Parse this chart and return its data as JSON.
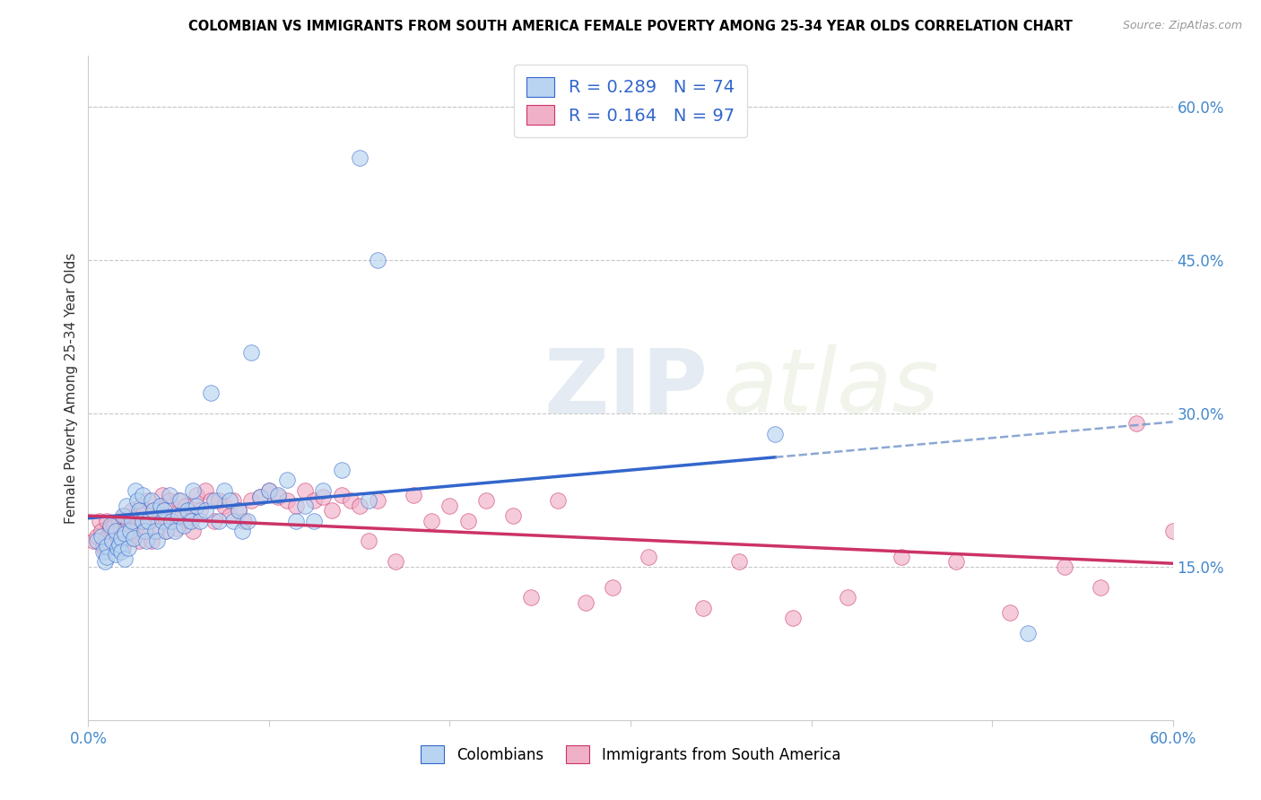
{
  "title": "COLOMBIAN VS IMMIGRANTS FROM SOUTH AMERICA FEMALE POVERTY AMONG 25-34 YEAR OLDS CORRELATION CHART",
  "source": "Source: ZipAtlas.com",
  "ylabel": "Female Poverty Among 25-34 Year Olds",
  "xlim": [
    0,
    0.6
  ],
  "ylim": [
    0,
    0.65
  ],
  "xticks": [
    0.0,
    0.1,
    0.2,
    0.3,
    0.4,
    0.5,
    0.6
  ],
  "xtick_labels": [
    "0.0%",
    "",
    "",
    "",
    "",
    "",
    "60.0%"
  ],
  "ytick_labels_right": [
    "60.0%",
    "45.0%",
    "30.0%",
    "15.0%"
  ],
  "ytick_positions_right": [
    0.6,
    0.45,
    0.3,
    0.15
  ],
  "color_colombian": "#b8d4f0",
  "color_south_america": "#f0b0c8",
  "color_colombian_line": "#3366cc",
  "color_south_america_line": "#cc3366",
  "color_dashed": "#7799cc",
  "r_colombian": 0.289,
  "n_colombian": 74,
  "r_south_america": 0.164,
  "n_south_america": 97,
  "colombian_x": [
    0.005,
    0.007,
    0.008,
    0.009,
    0.01,
    0.01,
    0.012,
    0.013,
    0.015,
    0.015,
    0.016,
    0.017,
    0.018,
    0.018,
    0.019,
    0.02,
    0.02,
    0.021,
    0.022,
    0.023,
    0.024,
    0.025,
    0.026,
    0.027,
    0.028,
    0.03,
    0.03,
    0.031,
    0.032,
    0.033,
    0.035,
    0.036,
    0.037,
    0.038,
    0.04,
    0.041,
    0.042,
    0.043,
    0.045,
    0.046,
    0.048,
    0.05,
    0.051,
    0.053,
    0.055,
    0.057,
    0.058,
    0.06,
    0.062,
    0.065,
    0.068,
    0.07,
    0.072,
    0.075,
    0.078,
    0.08,
    0.083,
    0.085,
    0.088,
    0.09,
    0.095,
    0.1,
    0.105,
    0.11,
    0.115,
    0.12,
    0.125,
    0.13,
    0.14,
    0.15,
    0.155,
    0.16,
    0.38,
    0.52
  ],
  "colombian_y": [
    0.175,
    0.18,
    0.165,
    0.155,
    0.17,
    0.16,
    0.19,
    0.175,
    0.185,
    0.162,
    0.168,
    0.172,
    0.178,
    0.165,
    0.2,
    0.158,
    0.182,
    0.21,
    0.168,
    0.185,
    0.195,
    0.178,
    0.225,
    0.215,
    0.205,
    0.195,
    0.22,
    0.185,
    0.175,
    0.195,
    0.215,
    0.205,
    0.185,
    0.175,
    0.21,
    0.195,
    0.205,
    0.185,
    0.22,
    0.195,
    0.185,
    0.2,
    0.215,
    0.19,
    0.205,
    0.195,
    0.225,
    0.21,
    0.195,
    0.205,
    0.32,
    0.215,
    0.195,
    0.225,
    0.215,
    0.195,
    0.205,
    0.185,
    0.195,
    0.36,
    0.218,
    0.225,
    0.22,
    0.235,
    0.195,
    0.21,
    0.195,
    0.225,
    0.245,
    0.55,
    0.215,
    0.45,
    0.28,
    0.085
  ],
  "south_america_x": [
    0.003,
    0.005,
    0.006,
    0.007,
    0.008,
    0.009,
    0.01,
    0.01,
    0.011,
    0.012,
    0.013,
    0.014,
    0.015,
    0.016,
    0.017,
    0.018,
    0.019,
    0.02,
    0.021,
    0.022,
    0.023,
    0.024,
    0.025,
    0.026,
    0.027,
    0.028,
    0.029,
    0.03,
    0.031,
    0.032,
    0.033,
    0.034,
    0.035,
    0.036,
    0.037,
    0.038,
    0.04,
    0.041,
    0.042,
    0.043,
    0.045,
    0.047,
    0.049,
    0.05,
    0.052,
    0.054,
    0.056,
    0.058,
    0.06,
    0.062,
    0.065,
    0.068,
    0.07,
    0.072,
    0.075,
    0.078,
    0.08,
    0.083,
    0.086,
    0.09,
    0.095,
    0.1,
    0.105,
    0.11,
    0.115,
    0.12,
    0.125,
    0.13,
    0.135,
    0.14,
    0.145,
    0.15,
    0.155,
    0.16,
    0.17,
    0.18,
    0.19,
    0.2,
    0.21,
    0.22,
    0.235,
    0.245,
    0.26,
    0.275,
    0.29,
    0.31,
    0.34,
    0.36,
    0.39,
    0.42,
    0.45,
    0.48,
    0.51,
    0.54,
    0.56,
    0.58,
    0.6
  ],
  "south_america_y": [
    0.175,
    0.18,
    0.195,
    0.185,
    0.17,
    0.165,
    0.195,
    0.178,
    0.168,
    0.188,
    0.175,
    0.19,
    0.182,
    0.178,
    0.195,
    0.185,
    0.168,
    0.2,
    0.188,
    0.192,
    0.178,
    0.205,
    0.198,
    0.185,
    0.19,
    0.175,
    0.21,
    0.195,
    0.205,
    0.185,
    0.215,
    0.195,
    0.175,
    0.205,
    0.198,
    0.185,
    0.21,
    0.22,
    0.2,
    0.185,
    0.215,
    0.198,
    0.188,
    0.215,
    0.2,
    0.21,
    0.195,
    0.185,
    0.22,
    0.205,
    0.225,
    0.215,
    0.195,
    0.215,
    0.21,
    0.2,
    0.215,
    0.205,
    0.195,
    0.215,
    0.218,
    0.225,
    0.218,
    0.215,
    0.21,
    0.225,
    0.215,
    0.218,
    0.205,
    0.22,
    0.215,
    0.21,
    0.175,
    0.215,
    0.155,
    0.22,
    0.195,
    0.21,
    0.195,
    0.215,
    0.2,
    0.12,
    0.215,
    0.115,
    0.13,
    0.16,
    0.11,
    0.155,
    0.1,
    0.12,
    0.16,
    0.155,
    0.105,
    0.15,
    0.13,
    0.29,
    0.185
  ]
}
